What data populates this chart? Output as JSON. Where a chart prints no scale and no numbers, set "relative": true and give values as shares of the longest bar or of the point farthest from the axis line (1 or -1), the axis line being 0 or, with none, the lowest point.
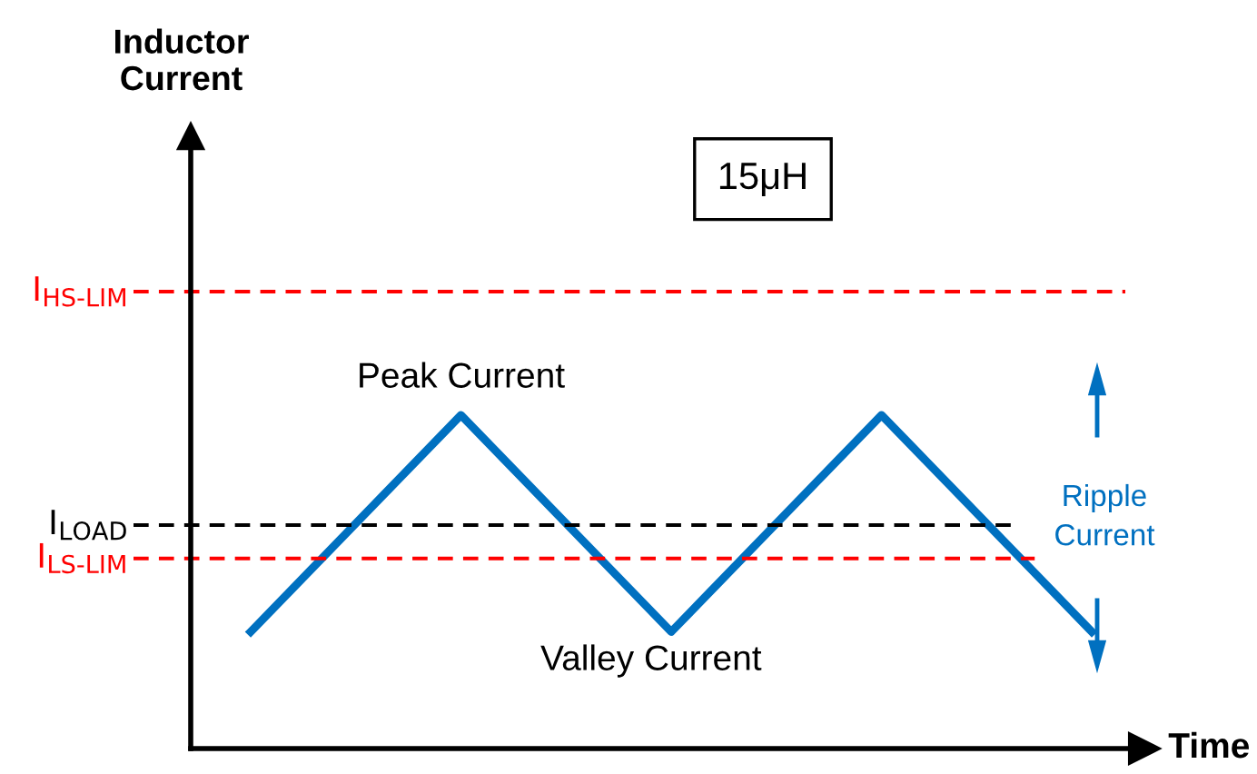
{
  "chart_data": {
    "type": "line",
    "relative": true,
    "categories": [
      null,
      null,
      null,
      null,
      null
    ],
    "series": [
      {
        "color": "#0070c0",
        "values": [
          0.35,
          1,
          0.35,
          1,
          0.35
        ]
      }
    ],
    "xlabel": "Time",
    "ref_lines": [
      {
        "axis": "y",
        "value": 1.37,
        "label": "I$_{HS-LIM}$",
        "color": "#ff0000",
        "line_style": "dashed"
      },
      {
        "axis": "y",
        "value": 0.67,
        "label": "I$_{LOAD}$",
        "color": "#000000",
        "line_style": "dashed"
      },
      {
        "axis": "y",
        "value": 0.57,
        "label": "I$_{LS-LIM}$",
        "color": "#ff0000",
        "line_style": "dashed"
      }
    ],
    "annotations": [
      "15μH",
      "Peak Current",
      "Valley Current",
      "Ripple Current",
      "Inductor Current"
    ],
    "marker": "none",
    "line_style": "solid"
  }
}
